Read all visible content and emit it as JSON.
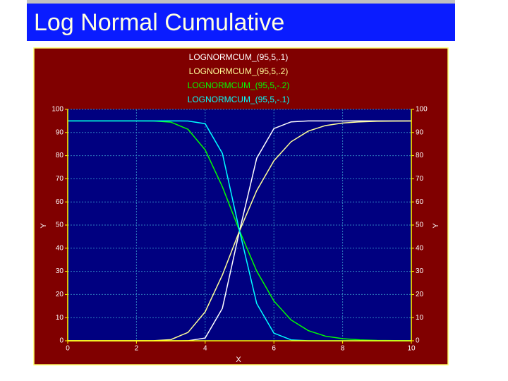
{
  "chart_data": {
    "type": "line",
    "title": "Log Normal Cumulative",
    "xlabel": "X",
    "ylabel": "Y",
    "y2label": "Y",
    "x": [
      0,
      0.5,
      1,
      1.5,
      2,
      2.5,
      3,
      3.5,
      4,
      4.5,
      5,
      5.5,
      6,
      6.5,
      7,
      7.5,
      8,
      8.5,
      9,
      9.5,
      10
    ],
    "series": [
      {
        "name": "LOGNORMCUM_(95,5,.1)",
        "color": "#ffffff",
        "values": [
          0,
          0,
          0,
          0,
          0,
          0,
          0,
          0.02,
          1.2,
          14.0,
          47.5,
          78.9,
          91.7,
          94.6,
          95.0,
          95,
          95,
          95,
          95,
          95,
          95
        ]
      },
      {
        "name": "LOGNORMCUM_(95,5,.2)",
        "color": "#ffff99",
        "values": [
          0,
          0,
          0,
          0,
          0,
          0.02,
          0.51,
          3.6,
          12.5,
          28.4,
          47.5,
          64.9,
          77.8,
          86.0,
          90.6,
          93.0,
          94.1,
          94.6,
          94.85,
          94.93,
          94.98
        ]
      },
      {
        "name": "LOGNORMCUM_(95,5,-.2)",
        "color": "#00ff00",
        "values": [
          95,
          95,
          95,
          95,
          95,
          94.98,
          94.49,
          91.4,
          82.5,
          66.6,
          47.5,
          30.1,
          17.2,
          9.0,
          4.4,
          2.0,
          0.9,
          0.4,
          0.15,
          0.07,
          0.02
        ]
      },
      {
        "name": "LOGNORMCUM_(95,5,-.1)",
        "color": "#00ffff",
        "values": [
          95,
          95,
          95,
          95,
          95,
          95,
          95,
          94.98,
          93.8,
          81.0,
          47.5,
          16.1,
          3.3,
          0.4,
          0,
          0,
          0,
          0,
          0,
          0,
          0
        ]
      }
    ],
    "xlim": [
      0,
      10
    ],
    "xticks": [
      0,
      2,
      4,
      6,
      8,
      10
    ],
    "ylim": [
      0,
      100
    ],
    "yticks": [
      0,
      10,
      20,
      30,
      40,
      50,
      60,
      70,
      80,
      90,
      100
    ],
    "y2lim": [
      0,
      100
    ],
    "y2ticks": [
      0,
      10,
      20,
      30,
      40,
      50,
      60,
      70,
      80,
      90,
      100
    ],
    "grid": true
  }
}
